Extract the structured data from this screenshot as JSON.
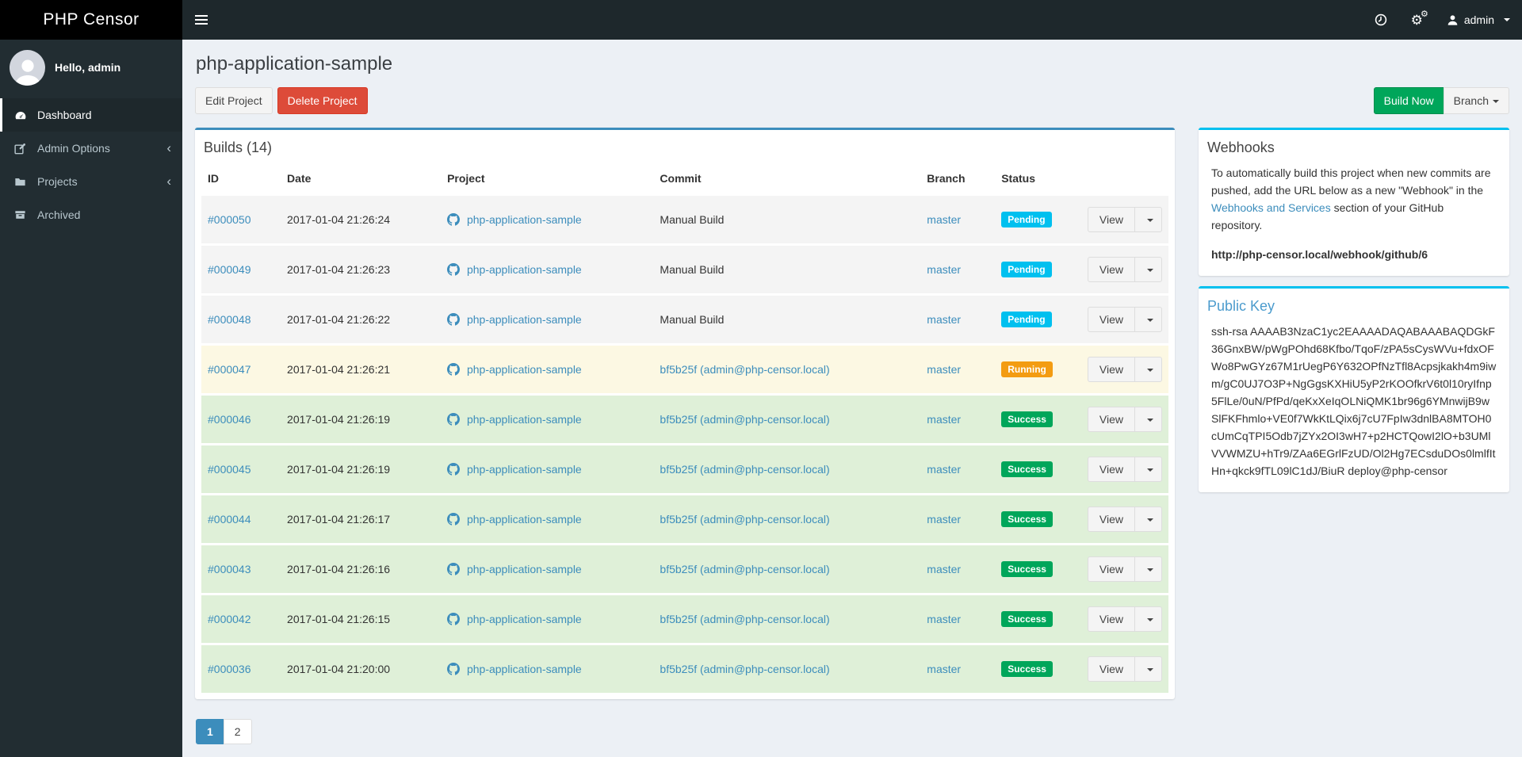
{
  "brand": "PHP Censor",
  "navbar": {
    "username": "admin",
    "icons": [
      "clock-icon",
      "cogs-icon",
      "user-icon",
      "caret-down-icon"
    ]
  },
  "sidebar": {
    "greeting": "Hello, admin",
    "items": [
      {
        "label": "Dashboard",
        "icon": "tachometer-icon",
        "active": true,
        "chevron": false
      },
      {
        "label": "Admin Options",
        "icon": "edit-icon",
        "active": false,
        "chevron": true
      },
      {
        "label": "Projects",
        "icon": "folder-icon",
        "active": false,
        "chevron": true
      },
      {
        "label": "Archived",
        "icon": "archive-icon",
        "active": false,
        "chevron": false
      }
    ]
  },
  "page": {
    "title": "php-application-sample",
    "edit_button": "Edit Project",
    "delete_button": "Delete Project",
    "build_now_button": "Build Now",
    "branch_button": "Branch"
  },
  "builds": {
    "title": "Builds (14)",
    "columns": {
      "id": "ID",
      "date": "Date",
      "project": "Project",
      "commit": "Commit",
      "branch": "Branch",
      "status": "Status"
    },
    "view_label": "View",
    "rows": [
      {
        "id": "#000050",
        "date": "2017-01-04 21:26:24",
        "project": "php-application-sample",
        "commit": "Manual Build",
        "commit_is_link": false,
        "branch": "master",
        "status": "Pending",
        "status_type": "pending"
      },
      {
        "id": "#000049",
        "date": "2017-01-04 21:26:23",
        "project": "php-application-sample",
        "commit": "Manual Build",
        "commit_is_link": false,
        "branch": "master",
        "status": "Pending",
        "status_type": "pending"
      },
      {
        "id": "#000048",
        "date": "2017-01-04 21:26:22",
        "project": "php-application-sample",
        "commit": "Manual Build",
        "commit_is_link": false,
        "branch": "master",
        "status": "Pending",
        "status_type": "pending"
      },
      {
        "id": "#000047",
        "date": "2017-01-04 21:26:21",
        "project": "php-application-sample",
        "commit": "bf5b25f (admin@php-censor.local)",
        "commit_is_link": true,
        "branch": "master",
        "status": "Running",
        "status_type": "running"
      },
      {
        "id": "#000046",
        "date": "2017-01-04 21:26:19",
        "project": "php-application-sample",
        "commit": "bf5b25f (admin@php-censor.local)",
        "commit_is_link": true,
        "branch": "master",
        "status": "Success",
        "status_type": "success"
      },
      {
        "id": "#000045",
        "date": "2017-01-04 21:26:19",
        "project": "php-application-sample",
        "commit": "bf5b25f (admin@php-censor.local)",
        "commit_is_link": true,
        "branch": "master",
        "status": "Success",
        "status_type": "success"
      },
      {
        "id": "#000044",
        "date": "2017-01-04 21:26:17",
        "project": "php-application-sample",
        "commit": "bf5b25f (admin@php-censor.local)",
        "commit_is_link": true,
        "branch": "master",
        "status": "Success",
        "status_type": "success"
      },
      {
        "id": "#000043",
        "date": "2017-01-04 21:26:16",
        "project": "php-application-sample",
        "commit": "bf5b25f (admin@php-censor.local)",
        "commit_is_link": true,
        "branch": "master",
        "status": "Success",
        "status_type": "success"
      },
      {
        "id": "#000042",
        "date": "2017-01-04 21:26:15",
        "project": "php-application-sample",
        "commit": "bf5b25f (admin@php-censor.local)",
        "commit_is_link": true,
        "branch": "master",
        "status": "Success",
        "status_type": "success"
      },
      {
        "id": "#000036",
        "date": "2017-01-04 21:20:00",
        "project": "php-application-sample",
        "commit": "bf5b25f (admin@php-censor.local)",
        "commit_is_link": true,
        "branch": "master",
        "status": "Success",
        "status_type": "success"
      }
    ],
    "pagination": [
      {
        "label": "1",
        "active": true
      },
      {
        "label": "2",
        "active": false
      }
    ]
  },
  "webhooks": {
    "title": "Webhooks",
    "text_before_link": "To automatically build this project when new commits are pushed, add the URL below as a new \"Webhook\" in the ",
    "link_text": "Webhooks and Services",
    "text_after_link": " section of your GitHub repository.",
    "url": "http://php-censor.local/webhook/github/6"
  },
  "public_key": {
    "title": "Public Key",
    "key": "ssh-rsa AAAAB3NzaC1yc2EAAAADAQABAAABAQDGkF36GnxBW/pWgPOhd68Kfbo/TqoF/zPA5sCysWVu+fdxOFWo8PwGYz67M1rUegP6Y632OPfNzTfl8Acpsjkakh4m9iwm/gC0UJ7O3P+NgGgsKXHiU5yP2rKOOfkrV6t0l10ryIfnp5FlLe/0uN/PfPd/qeKxXeIqOLNiQMK1br96g6YMnwijB9wSlFKFhmlo+VE0f7WkKtLQix6j7cU7FpIw3dnlBA8MTOH0cUmCqTPI5Odb7jZYx2OI3wH7+p2HCTQowI2lO+b3UMlVVWMZU+hTr9/ZAa6EGrlFzUD/Ol2Hg7ECsduDOs0lmlfItHn+qkck9fTL09lC1dJ/BiuR deploy@php-censor"
  },
  "colors": {
    "accent_blue": "#3c8dbc",
    "info_cyan": "#00c0ef",
    "success_green": "#00a65a",
    "warning_orange": "#f39c12",
    "danger_red": "#dd4b39",
    "sidebar_dark": "#222d32"
  }
}
